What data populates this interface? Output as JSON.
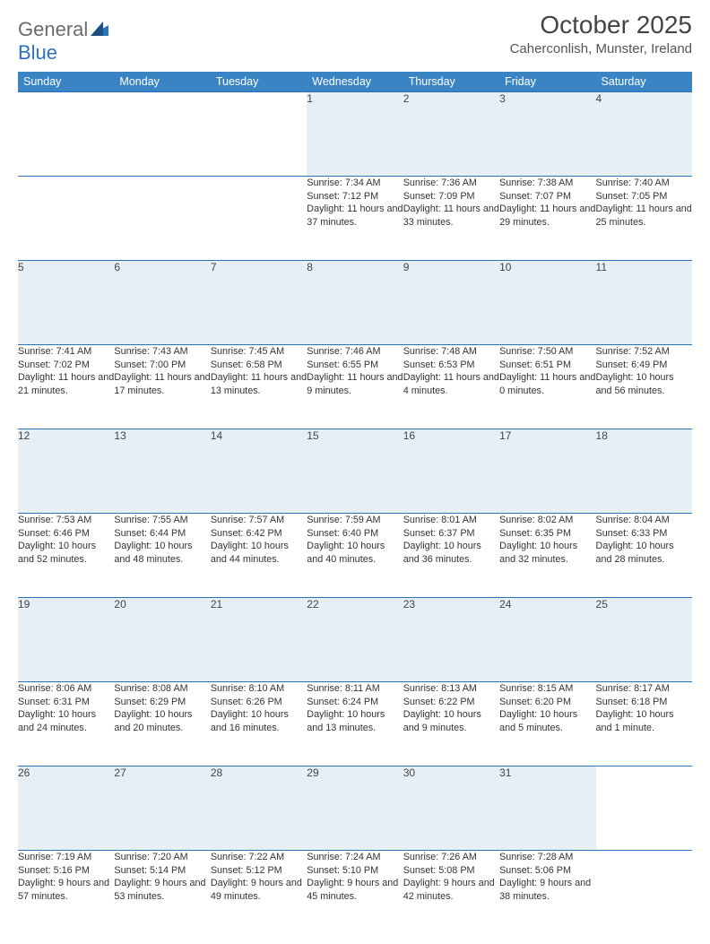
{
  "logo": {
    "text1": "General",
    "text2": "Blue"
  },
  "title": "October 2025",
  "location": "Caherconlish, Munster, Ireland",
  "colors": {
    "header_bg": "#3b84c4",
    "daynum_bg": "#e7eff6",
    "row_border": "#2a72ba",
    "logo_gray": "#6b6b6b",
    "logo_blue": "#2a72ba"
  },
  "days": [
    "Sunday",
    "Monday",
    "Tuesday",
    "Wednesday",
    "Thursday",
    "Friday",
    "Saturday"
  ],
  "weeks": [
    [
      null,
      null,
      null,
      {
        "n": "1",
        "sr": "7:34 AM",
        "ss": "7:12 PM",
        "dl": "11 hours and 37 minutes."
      },
      {
        "n": "2",
        "sr": "7:36 AM",
        "ss": "7:09 PM",
        "dl": "11 hours and 33 minutes."
      },
      {
        "n": "3",
        "sr": "7:38 AM",
        "ss": "7:07 PM",
        "dl": "11 hours and 29 minutes."
      },
      {
        "n": "4",
        "sr": "7:40 AM",
        "ss": "7:05 PM",
        "dl": "11 hours and 25 minutes."
      }
    ],
    [
      {
        "n": "5",
        "sr": "7:41 AM",
        "ss": "7:02 PM",
        "dl": "11 hours and 21 minutes."
      },
      {
        "n": "6",
        "sr": "7:43 AM",
        "ss": "7:00 PM",
        "dl": "11 hours and 17 minutes."
      },
      {
        "n": "7",
        "sr": "7:45 AM",
        "ss": "6:58 PM",
        "dl": "11 hours and 13 minutes."
      },
      {
        "n": "8",
        "sr": "7:46 AM",
        "ss": "6:55 PM",
        "dl": "11 hours and 9 minutes."
      },
      {
        "n": "9",
        "sr": "7:48 AM",
        "ss": "6:53 PM",
        "dl": "11 hours and 4 minutes."
      },
      {
        "n": "10",
        "sr": "7:50 AM",
        "ss": "6:51 PM",
        "dl": "11 hours and 0 minutes."
      },
      {
        "n": "11",
        "sr": "7:52 AM",
        "ss": "6:49 PM",
        "dl": "10 hours and 56 minutes."
      }
    ],
    [
      {
        "n": "12",
        "sr": "7:53 AM",
        "ss": "6:46 PM",
        "dl": "10 hours and 52 minutes."
      },
      {
        "n": "13",
        "sr": "7:55 AM",
        "ss": "6:44 PM",
        "dl": "10 hours and 48 minutes."
      },
      {
        "n": "14",
        "sr": "7:57 AM",
        "ss": "6:42 PM",
        "dl": "10 hours and 44 minutes."
      },
      {
        "n": "15",
        "sr": "7:59 AM",
        "ss": "6:40 PM",
        "dl": "10 hours and 40 minutes."
      },
      {
        "n": "16",
        "sr": "8:01 AM",
        "ss": "6:37 PM",
        "dl": "10 hours and 36 minutes."
      },
      {
        "n": "17",
        "sr": "8:02 AM",
        "ss": "6:35 PM",
        "dl": "10 hours and 32 minutes."
      },
      {
        "n": "18",
        "sr": "8:04 AM",
        "ss": "6:33 PM",
        "dl": "10 hours and 28 minutes."
      }
    ],
    [
      {
        "n": "19",
        "sr": "8:06 AM",
        "ss": "6:31 PM",
        "dl": "10 hours and 24 minutes."
      },
      {
        "n": "20",
        "sr": "8:08 AM",
        "ss": "6:29 PM",
        "dl": "10 hours and 20 minutes."
      },
      {
        "n": "21",
        "sr": "8:10 AM",
        "ss": "6:26 PM",
        "dl": "10 hours and 16 minutes."
      },
      {
        "n": "22",
        "sr": "8:11 AM",
        "ss": "6:24 PM",
        "dl": "10 hours and 13 minutes."
      },
      {
        "n": "23",
        "sr": "8:13 AM",
        "ss": "6:22 PM",
        "dl": "10 hours and 9 minutes."
      },
      {
        "n": "24",
        "sr": "8:15 AM",
        "ss": "6:20 PM",
        "dl": "10 hours and 5 minutes."
      },
      {
        "n": "25",
        "sr": "8:17 AM",
        "ss": "6:18 PM",
        "dl": "10 hours and 1 minute."
      }
    ],
    [
      {
        "n": "26",
        "sr": "7:19 AM",
        "ss": "5:16 PM",
        "dl": "9 hours and 57 minutes."
      },
      {
        "n": "27",
        "sr": "7:20 AM",
        "ss": "5:14 PM",
        "dl": "9 hours and 53 minutes."
      },
      {
        "n": "28",
        "sr": "7:22 AM",
        "ss": "5:12 PM",
        "dl": "9 hours and 49 minutes."
      },
      {
        "n": "29",
        "sr": "7:24 AM",
        "ss": "5:10 PM",
        "dl": "9 hours and 45 minutes."
      },
      {
        "n": "30",
        "sr": "7:26 AM",
        "ss": "5:08 PM",
        "dl": "9 hours and 42 minutes."
      },
      {
        "n": "31",
        "sr": "7:28 AM",
        "ss": "5:06 PM",
        "dl": "9 hours and 38 minutes."
      },
      null
    ]
  ],
  "labels": {
    "sunrise": "Sunrise:",
    "sunset": "Sunset:",
    "daylight": "Daylight:"
  }
}
